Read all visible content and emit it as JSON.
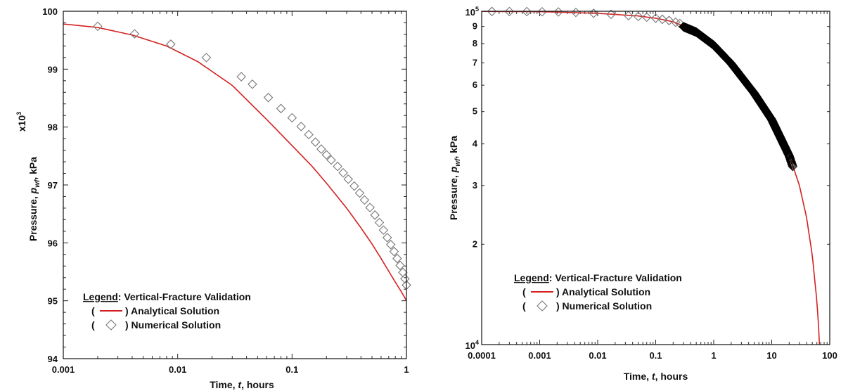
{
  "chart_data": [
    {
      "type": "line",
      "xscale": "log",
      "yscale": "linear",
      "xlim": [
        0.001,
        1
      ],
      "ylim": [
        94,
        100
      ],
      "xticks": [
        "0.001",
        "0.01",
        "0.1",
        "1"
      ],
      "yticks": [
        "94",
        "95",
        "96",
        "97",
        "98",
        "99",
        "100"
      ],
      "xlabel": {
        "pre": "Time, ",
        "var": "t",
        "post": ", hours"
      },
      "ylabel": {
        "pre": "Pressure, ",
        "var": "p",
        "sub": "wf",
        "post": ", kPa"
      },
      "ymultiplier": {
        "base": "x10",
        "exp": "3"
      },
      "legend": {
        "title": "Legend",
        "title_suffix": ": Vertical-Fracture Validation",
        "position": "bottom-left",
        "entries": [
          {
            "open": "(",
            "close": ") Analytical Solution",
            "marker": "line"
          },
          {
            "open": "(",
            "close": ") Numerical Solution",
            "marker": "diamond"
          }
        ]
      },
      "series": [
        {
          "name": "Analytical Solution",
          "color": "#d42020",
          "style": "line",
          "x": [
            0.001,
            0.002,
            0.004,
            0.008,
            0.015,
            0.03,
            0.06,
            0.1,
            0.15,
            0.2,
            0.3,
            0.4,
            0.5,
            0.6,
            0.7,
            0.8,
            0.9,
            1.0
          ],
          "y": [
            99.78,
            99.72,
            99.59,
            99.4,
            99.13,
            98.72,
            98.13,
            97.68,
            97.32,
            97.03,
            96.6,
            96.26,
            95.98,
            95.73,
            95.51,
            95.32,
            95.16,
            95.0
          ]
        },
        {
          "name": "Numerical Solution",
          "color": "#777777",
          "style": "diamond",
          "x": [
            0.002,
            0.0042,
            0.0087,
            0.0178,
            0.036,
            0.045,
            0.062,
            0.08,
            0.1,
            0.12,
            0.14,
            0.16,
            0.18,
            0.2,
            0.22,
            0.25,
            0.28,
            0.31,
            0.35,
            0.39,
            0.43,
            0.48,
            0.53,
            0.58,
            0.63,
            0.68,
            0.73,
            0.78,
            0.83,
            0.88,
            0.93,
            0.97,
            1.0
          ],
          "y": [
            99.74,
            99.61,
            99.43,
            99.2,
            98.87,
            98.74,
            98.51,
            98.32,
            98.16,
            98.01,
            97.87,
            97.74,
            97.62,
            97.52,
            97.43,
            97.32,
            97.21,
            97.1,
            96.98,
            96.86,
            96.74,
            96.61,
            96.48,
            96.35,
            96.22,
            96.09,
            95.97,
            95.85,
            95.73,
            95.61,
            95.49,
            95.38,
            95.27
          ]
        }
      ]
    },
    {
      "type": "line",
      "xscale": "log",
      "yscale": "log",
      "xlim": [
        0.0001,
        100
      ],
      "ylim": [
        10000,
        100000
      ],
      "xticks": [
        "0.0001",
        "0.001",
        "0.01",
        "0.1",
        "1",
        "10",
        "100"
      ],
      "yticks_major": [
        {
          "base": "10",
          "exp": "4",
          "value": 10000
        },
        {
          "base": "10",
          "exp": "5",
          "value": 100000
        }
      ],
      "yticks_minor": [
        "2",
        "3",
        "4",
        "5",
        "6",
        "7",
        "8",
        "9"
      ],
      "xlabel": {
        "pre": "Time, ",
        "var": "t",
        "post": ", hours"
      },
      "ylabel": {
        "pre": "Pressure, ",
        "var": "p",
        "sub": "wf",
        "post": ", kPa"
      },
      "legend": {
        "title": "Legend",
        "title_suffix": ": Vertical-Fracture Validation",
        "position": "bottom-left",
        "entries": [
          {
            "open": "(",
            "close": ") Analytical Solution",
            "marker": "line"
          },
          {
            "open": "(",
            "close": ") Numerical Solution",
            "marker": "diamond"
          }
        ]
      },
      "series": [
        {
          "name": "Analytical Solution",
          "color": "#d42020",
          "style": "line",
          "x": [
            0.0001,
            0.001,
            0.01,
            0.05,
            0.1,
            0.2,
            0.5,
            1,
            2,
            5,
            10,
            20,
            30,
            40,
            50,
            60,
            65,
            70
          ],
          "y": [
            99900,
            99700,
            98600,
            96800,
            95300,
            93000,
            87000,
            79500,
            70000,
            57000,
            47500,
            37000,
            30000,
            24000,
            18500,
            13500,
            11000,
            8000
          ]
        },
        {
          "name": "Numerical Solution",
          "color": "#777777",
          "style": "diamond",
          "x": [
            0.00015,
            0.0003,
            0.0006,
            0.0011,
            0.0021,
            0.0042,
            0.0085,
            0.017,
            0.034,
            0.05,
            0.07,
            0.1,
            0.13,
            0.17,
            0.22,
            0.26
          ],
          "y": [
            99850,
            99800,
            99750,
            99650,
            99500,
            99200,
            98600,
            97900,
            97000,
            96500,
            96000,
            95300,
            94600,
            93800,
            92700,
            91900
          ],
          "dense_band": {
            "x_from": 0.3,
            "x_to": 23
          }
        }
      ]
    }
  ]
}
